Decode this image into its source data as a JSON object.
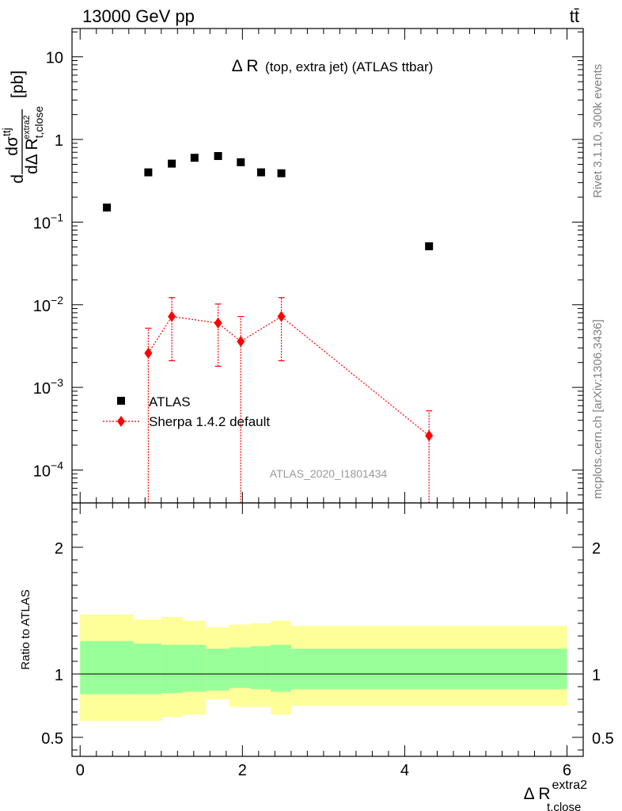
{
  "header": {
    "energy_label": "13000 GeV pp",
    "process_label": "tt̄"
  },
  "side_labels": {
    "rivet": "Rivet 3.1.10,  300k events",
    "mcplots": "mcplots.cern.ch [arXiv:1306.3436]"
  },
  "colors": {
    "data": "#000000",
    "mc": "#ff0000",
    "band_inner": "#99ff99",
    "band_outer": "#ffff99"
  },
  "chart_data": [
    {
      "type": "scatter",
      "title": "Δ R (top, extra jet) (ATLAS ttbar)",
      "title_main": "Δ R",
      "title_sub": "(top, extra jet) (ATLAS ttbar)",
      "ylabel": "dσ^{ttj} / dΔ R_{t,close}^{extra2} [pb]",
      "ylabel_parts": {
        "d_prefix": "d",
        "num": "dσ",
        "num_sup": "ttj",
        "den": "dΔ R",
        "den_sub": "t,close",
        "den_sup": "extra2",
        "unit": "[pb]"
      },
      "yscale": "log",
      "ylim": [
        4e-05,
        22
      ],
      "xlim": [
        -0.1,
        6.2
      ],
      "y_ticks": [
        {
          "value": 10,
          "base": "10",
          "exp": ""
        },
        {
          "value": 1,
          "base": "1",
          "exp": ""
        },
        {
          "value": 0.1,
          "base": "10",
          "exp": "−1"
        },
        {
          "value": 0.01,
          "base": "10",
          "exp": "−2"
        },
        {
          "value": 0.001,
          "base": "10",
          "exp": "−3"
        },
        {
          "value": 0.0001,
          "base": "10",
          "exp": "−4"
        }
      ],
      "legend_position": "lower-left",
      "watermark": "ATLAS_2020_I1801434",
      "series": [
        {
          "name": "ATLAS",
          "marker": "square",
          "x": [
            0.33,
            0.84,
            1.13,
            1.41,
            1.7,
            1.98,
            2.23,
            2.48,
            4.3
          ],
          "y": [
            0.15,
            0.4,
            0.51,
            0.6,
            0.63,
            0.53,
            0.4,
            0.39,
            0.051
          ]
        },
        {
          "name": "Sherpa 1.4.2 default",
          "marker": "diamond",
          "linestyle": "dotted",
          "x": [
            0.84,
            1.13,
            1.7,
            1.98,
            2.48,
            4.3
          ],
          "y": [
            0.0026,
            0.0072,
            0.006,
            0.0036,
            0.0072,
            0.00026
          ],
          "y_low": [
            1e-05,
            0.0021,
            0.0018,
            1e-05,
            0.0021,
            1e-05
          ],
          "y_high": [
            0.0052,
            0.0122,
            0.0102,
            0.0072,
            0.0122,
            0.00052
          ]
        }
      ]
    },
    {
      "type": "area",
      "ylabel": "Ratio to ATLAS",
      "xlabel": "Δ R_{t,close}^{extra2}",
      "xlabel_parts": {
        "main": "Δ R",
        "sub": "t,close",
        "sup": "extra2"
      },
      "ylim": [
        0.35,
        2.35
      ],
      "xlim": [
        -0.1,
        6.2
      ],
      "x_ticks": [
        "0",
        "2",
        "4",
        "6"
      ],
      "y_ticks": [
        "0.5",
        "1",
        "2"
      ],
      "reference_line": 1,
      "bands": {
        "edges": [
          0,
          0.66,
          1.0,
          1.27,
          1.55,
          1.84,
          2.1,
          2.35,
          2.6,
          6.0
        ],
        "inner_low": [
          0.84,
          0.84,
          0.85,
          0.86,
          0.87,
          0.89,
          0.88,
          0.86,
          0.88
        ],
        "inner_high": [
          1.26,
          1.24,
          1.23,
          1.23,
          1.2,
          1.21,
          1.22,
          1.23,
          1.2
        ],
        "outer_low": [
          0.63,
          0.63,
          0.66,
          0.68,
          0.8,
          0.74,
          0.74,
          0.68,
          0.75
        ],
        "outer_high": [
          1.47,
          1.43,
          1.45,
          1.42,
          1.37,
          1.39,
          1.4,
          1.42,
          1.38
        ]
      }
    }
  ]
}
